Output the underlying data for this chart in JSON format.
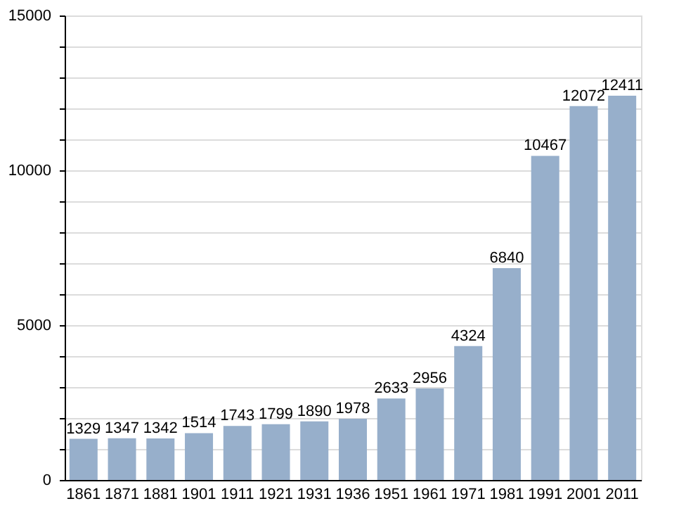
{
  "chart_data": {
    "type": "bar",
    "categories": [
      "1861",
      "1871",
      "1881",
      "1901",
      "1911",
      "1921",
      "1931",
      "1936",
      "1951",
      "1961",
      "1971",
      "1981",
      "1991",
      "2001",
      "2011"
    ],
    "values": [
      1329,
      1347,
      1342,
      1514,
      1743,
      1799,
      1890,
      1978,
      2633,
      2956,
      4324,
      6840,
      10467,
      12072,
      12411
    ],
    "color": "#97afcb",
    "ylim": [
      0,
      15000
    ],
    "yticks": [
      0,
      {
        "value": 1000,
        "label": null
      },
      {
        "value": 2000,
        "label": null
      },
      {
        "value": 3000,
        "label": null
      },
      {
        "value": 4000,
        "label": null
      },
      5000,
      {
        "value": 6000,
        "label": null
      },
      {
        "value": 7000,
        "label": null
      },
      {
        "value": 8000,
        "label": null
      },
      {
        "value": 9000,
        "label": null
      },
      10000,
      {
        "value": 11000,
        "label": null
      },
      {
        "value": 12000,
        "label": null
      },
      {
        "value": 13000,
        "label": null
      },
      {
        "value": 14000,
        "label": null
      },
      15000
    ],
    "grid": true,
    "data_labels": true
  }
}
